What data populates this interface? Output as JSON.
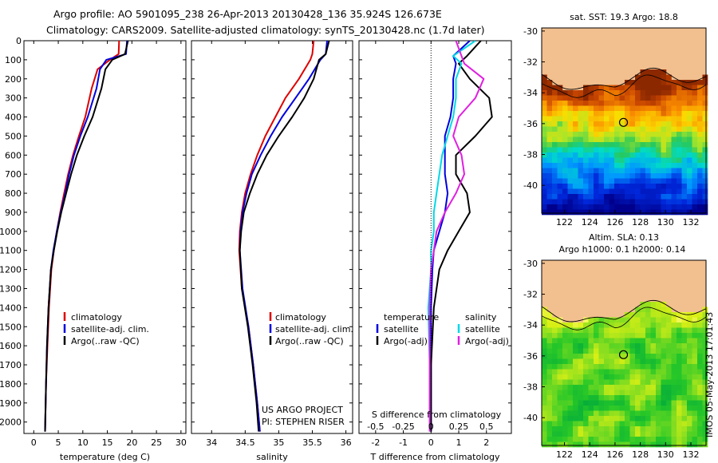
{
  "title": {
    "line1": "Argo profile: AO 5901095_238 26-Apr-2013 20130428_136 35.924S 126.673E",
    "line2": "Climatology: CARS2009. Satellite-adjusted climatology: synTS_20130428.nc (1.7d later)"
  },
  "footer": {
    "project": "US ARGO PROJECT",
    "pi": "PI: STEPHEN RISER",
    "timestamp": "IMOS 05-May-2013 17:01:43"
  },
  "colors": {
    "climatology": "#dd0000",
    "satellite": "#0000dd",
    "argo": "#000000",
    "cyan": "#00d8e8",
    "magenta": "#e020e0",
    "land": "#f2bf8f"
  },
  "chart_data": [
    {
      "type": "line",
      "id": "temperature",
      "xlabel": "temperature (deg C)",
      "ylabel": "",
      "xlim": [
        -2,
        31
      ],
      "ylim": [
        2060,
        0
      ],
      "xticks": [
        0,
        5,
        10,
        15,
        20,
        25,
        30
      ],
      "yticks": [
        0,
        100,
        200,
        300,
        400,
        500,
        600,
        700,
        800,
        900,
        1000,
        1100,
        1200,
        1300,
        1400,
        1500,
        1600,
        1700,
        1800,
        1900,
        2000
      ],
      "legend": [
        "climatology",
        "satellite-adj. clim.",
        "Argo(..raw -QC)"
      ],
      "series": [
        {
          "name": "climatology",
          "color": "#dd0000",
          "x": [
            17.4,
            17.3,
            15.5,
            13.0,
            11.8,
            10.5,
            9.2,
            8.0,
            7.0,
            6.2,
            5.4,
            4.7,
            4.1,
            3.6,
            3.1,
            2.8,
            2.5,
            2.3
          ],
          "y": [
            0,
            70,
            100,
            150,
            250,
            400,
            500,
            600,
            700,
            800,
            900,
            1000,
            1100,
            1200,
            1400,
            1600,
            1800,
            2050
          ]
        },
        {
          "name": "satellite-adj. clim.",
          "color": "#0000dd",
          "x": [
            19.0,
            18.8,
            14.8,
            13.5,
            12.8,
            11.0,
            9.5,
            8.2,
            7.2,
            6.4,
            5.5,
            4.7,
            4.0,
            3.5,
            3.0,
            2.7,
            2.5,
            2.3
          ],
          "y": [
            0,
            70,
            100,
            150,
            250,
            400,
            500,
            600,
            700,
            800,
            900,
            1000,
            1100,
            1200,
            1400,
            1600,
            1800,
            2050
          ]
        },
        {
          "name": "Argo(..raw -QC)",
          "color": "#000000",
          "x": [
            19.2,
            18.6,
            16.0,
            14.6,
            13.8,
            12.0,
            10.3,
            8.8,
            7.6,
            6.6,
            5.6,
            4.8,
            4.1,
            3.5,
            3.0,
            2.7,
            2.5,
            2.3
          ],
          "y": [
            0,
            70,
            100,
            150,
            250,
            400,
            500,
            600,
            700,
            800,
            900,
            1000,
            1100,
            1200,
            1400,
            1600,
            1800,
            2050
          ]
        }
      ]
    },
    {
      "type": "line",
      "id": "salinity",
      "xlabel": "salinity",
      "xlim": [
        33.7,
        36.1
      ],
      "ylim": [
        2060,
        0
      ],
      "xticks": [
        34,
        34.5,
        35,
        35.5,
        36
      ],
      "legend": [
        "climatology",
        "satellite-adj. clim.",
        "Argo(..raw -QC)"
      ],
      "series": [
        {
          "name": "climatology",
          "color": "#dd0000",
          "x": [
            35.52,
            35.5,
            35.47,
            35.3,
            35.1,
            34.95,
            34.8,
            34.68,
            34.58,
            34.5,
            34.45,
            34.42,
            34.41,
            34.45,
            34.55,
            34.62,
            34.68,
            34.72
          ],
          "y": [
            0,
            70,
            100,
            200,
            300,
            400,
            500,
            600,
            700,
            800,
            900,
            1000,
            1100,
            1300,
            1500,
            1700,
            1900,
            2050
          ]
        },
        {
          "name": "satellite-adj. clim.",
          "color": "#0000dd",
          "x": [
            35.72,
            35.7,
            35.62,
            35.45,
            35.25,
            35.05,
            34.88,
            34.73,
            34.6,
            34.52,
            34.46,
            34.43,
            34.42,
            34.46,
            34.55,
            34.62,
            34.68,
            34.72
          ],
          "y": [
            0,
            70,
            100,
            200,
            300,
            400,
            500,
            600,
            700,
            800,
            900,
            1000,
            1100,
            1300,
            1500,
            1700,
            1900,
            2050
          ]
        },
        {
          "name": "Argo(..raw -QC)",
          "color": "#000000",
          "x": [
            35.75,
            35.7,
            35.6,
            35.52,
            35.38,
            35.2,
            35.0,
            34.82,
            34.68,
            34.57,
            34.48,
            34.44,
            34.42,
            34.45,
            34.54,
            34.61,
            34.67,
            34.7
          ],
          "y": [
            0,
            70,
            100,
            200,
            300,
            400,
            500,
            600,
            700,
            800,
            900,
            1000,
            1100,
            1300,
            1500,
            1700,
            1900,
            2050
          ]
        }
      ]
    },
    {
      "type": "line",
      "id": "difference",
      "xlabel": "T difference from climatology",
      "xlabel2": "S difference from climatology",
      "xlim": [
        -2.6,
        2.9
      ],
      "ylim": [
        2060,
        0
      ],
      "xticks_T": [
        -2,
        -1,
        0,
        1,
        2
      ],
      "xticks_S": [
        -0.5,
        -0.25,
        0,
        0.25,
        0.5
      ],
      "legend_title_left": "temperature",
      "legend_title_right": "salinity",
      "legend_left": [
        "satellite",
        "Argo(-adj)"
      ],
      "legend_right": [
        "satellite",
        "Argo(-adj)"
      ],
      "series": [
        {
          "name": "satellite",
          "group": "temperature",
          "color": "#0000dd",
          "x": [
            1.4,
            0.8,
            0.9,
            0.8,
            0.8,
            0.7,
            0.5,
            0.5,
            0.5,
            0.6,
            0.5,
            0.3,
            0.1,
            0.05,
            0.0,
            0.0,
            0.0
          ],
          "y": [
            0,
            80,
            120,
            200,
            300,
            400,
            500,
            600,
            700,
            800,
            900,
            1000,
            1100,
            1200,
            1400,
            1700,
            2050
          ]
        },
        {
          "name": "Argo(-adj)",
          "group": "temperature",
          "color": "#000000",
          "x": [
            1.8,
            1.3,
            1.0,
            1.4,
            2.1,
            2.2,
            1.6,
            0.9,
            0.9,
            1.3,
            1.4,
            1.0,
            0.6,
            0.3,
            0.1,
            0.0,
            0.0
          ],
          "y": [
            0,
            80,
            120,
            200,
            300,
            400,
            500,
            600,
            700,
            800,
            900,
            1000,
            1100,
            1200,
            1400,
            1700,
            2050
          ]
        },
        {
          "name": "satellite",
          "group": "salinity",
          "color": "#00d8e8",
          "x": [
            1.6,
            0.8,
            1.1,
            0.9,
            0.9,
            0.8,
            0.6,
            0.4,
            0.3,
            0.2,
            0.1,
            0.1,
            0.0,
            0.0,
            -0.1,
            -0.05,
            -0.05
          ],
          "y": [
            0,
            80,
            120,
            200,
            300,
            400,
            500,
            600,
            700,
            800,
            900,
            1000,
            1100,
            1200,
            1400,
            1700,
            2050
          ]
        },
        {
          "name": "Argo(-adj)",
          "group": "salinity",
          "color": "#e020e0",
          "x": [
            0.9,
            1.1,
            1.2,
            1.9,
            1.6,
            1.0,
            0.8,
            1.1,
            1.2,
            0.9,
            0.5,
            0.2,
            0.1,
            0.0,
            -0.05,
            -0.05,
            -0.05
          ],
          "y": [
            0,
            80,
            120,
            200,
            300,
            400,
            500,
            600,
            700,
            800,
            900,
            1000,
            1100,
            1200,
            1400,
            1700,
            2050
          ]
        }
      ]
    },
    {
      "type": "heatmap",
      "id": "sst-map",
      "title": "sat. SST: 19.3 Argo: 18.8",
      "xlim": [
        120.2,
        133.2
      ],
      "ylim": [
        -41.8,
        -29.8
      ],
      "xticks": [
        122,
        124,
        126,
        128,
        130,
        132
      ],
      "yticks": [
        -30,
        -32,
        -34,
        -36,
        -38,
        -40
      ],
      "marker": {
        "lon": 126.67,
        "lat": -35.92
      }
    },
    {
      "type": "heatmap",
      "id": "sla-map",
      "title": "Altim. SLA: 0.13",
      "subtitle": "Argo h1000: 0.1 h2000: 0.14",
      "xlim": [
        120.2,
        133.2
      ],
      "ylim": [
        -41.8,
        -29.8
      ],
      "xticks": [
        122,
        124,
        126,
        128,
        130,
        132
      ],
      "yticks": [
        -30,
        -32,
        -34,
        -36,
        -38,
        -40
      ],
      "marker": {
        "lon": 126.67,
        "lat": -35.92
      }
    }
  ]
}
